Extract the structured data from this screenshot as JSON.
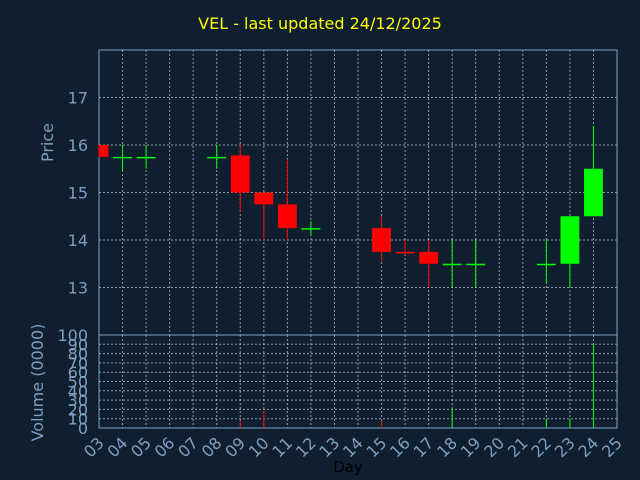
{
  "chart_title": "VEL - last updated 24/12/2025",
  "chart_data": [
    {
      "type": "candlestick",
      "ylabel": "Price",
      "ylim": [
        12.0,
        18.0
      ],
      "yticks": [
        13,
        14,
        15,
        16,
        17
      ],
      "up_color": "#00ff00",
      "down_color": "#ff0000",
      "grid": true,
      "candles": [
        {
          "day": "03",
          "open": 16.0,
          "high": 16.0,
          "low": 15.75,
          "close": 15.75
        },
        {
          "day": "04",
          "open": 15.75,
          "high": 16.0,
          "low": 15.45,
          "close": 15.75
        },
        {
          "day": "05",
          "open": 15.75,
          "high": 16.0,
          "low": 15.5,
          "close": 15.75
        },
        {
          "day": "08",
          "open": 15.75,
          "high": 16.0,
          "low": 15.5,
          "close": 15.75
        },
        {
          "day": "09",
          "open": 15.78,
          "high": 16.0,
          "low": 14.6,
          "close": 15.0
        },
        {
          "day": "10",
          "open": 15.0,
          "high": 15.0,
          "low": 14.0,
          "close": 14.75
        },
        {
          "day": "11",
          "open": 14.75,
          "high": 15.7,
          "low": 14.0,
          "close": 14.25
        },
        {
          "day": "12",
          "open": 14.25,
          "high": 14.4,
          "low": 14.1,
          "close": 14.25
        },
        {
          "day": "15",
          "open": 14.25,
          "high": 14.5,
          "low": 13.55,
          "close": 13.75
        },
        {
          "day": "16",
          "open": 13.75,
          "high": 14.0,
          "low": 13.7,
          "close": 13.72
        },
        {
          "day": "17",
          "open": 13.75,
          "high": 14.0,
          "low": 13.0,
          "close": 13.5
        },
        {
          "day": "18",
          "open": 13.5,
          "high": 14.0,
          "low": 13.0,
          "close": 13.5
        },
        {
          "day": "19",
          "open": 13.5,
          "high": 14.0,
          "low": 13.0,
          "close": 13.5
        },
        {
          "day": "22",
          "open": 13.5,
          "high": 14.0,
          "low": 13.1,
          "close": 13.5
        },
        {
          "day": "23",
          "open": 13.5,
          "high": 14.5,
          "low": 13.0,
          "close": 14.5
        },
        {
          "day": "24",
          "open": 14.5,
          "high": 16.4,
          "low": 14.5,
          "close": 15.5
        }
      ]
    },
    {
      "type": "bar",
      "ylabel": "Volume (0000)",
      "ylim": [
        0,
        100
      ],
      "yticks": [
        0,
        10,
        20,
        30,
        40,
        50,
        60,
        70,
        80,
        90,
        100
      ],
      "xlabel": "Day",
      "categories": [
        "03",
        "04",
        "05",
        "06",
        "07",
        "08",
        "09",
        "10",
        "11",
        "12",
        "13",
        "14",
        "15",
        "16",
        "17",
        "18",
        "19",
        "20",
        "21",
        "22",
        "23",
        "24",
        "25"
      ],
      "values": [
        {
          "day": "09",
          "volume": 8,
          "color": "#ff0000"
        },
        {
          "day": "10",
          "volume": 18,
          "color": "#ff0000"
        },
        {
          "day": "15",
          "volume": 8,
          "color": "#ff0000"
        },
        {
          "day": "18",
          "volume": 20,
          "color": "#00ff00"
        },
        {
          "day": "22",
          "volume": 10,
          "color": "#00ff00"
        },
        {
          "day": "23",
          "volume": 10,
          "color": "#00ff00"
        },
        {
          "day": "24",
          "volume": 90,
          "color": "#00ff00"
        }
      ]
    }
  ],
  "colors": {
    "background": "#0f1f30",
    "title": "#ffff00",
    "axis_text": "#7f9fc0",
    "frame": "#7f9fc0",
    "grid": "#ffffff"
  }
}
